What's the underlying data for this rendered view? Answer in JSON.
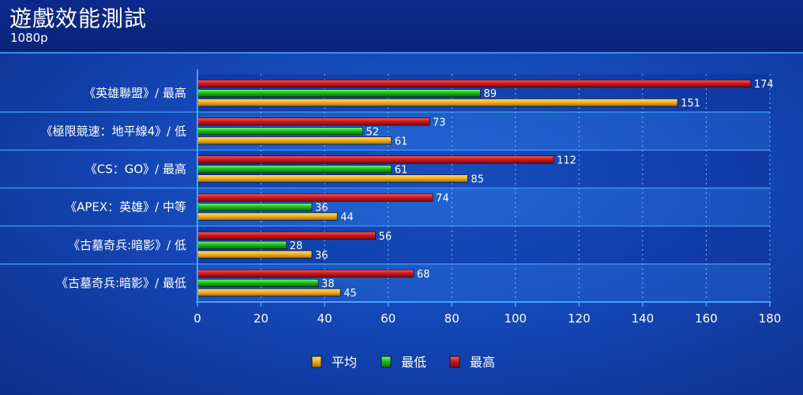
{
  "header": {
    "title": "遊戲效能測試",
    "subtitle": "1080p"
  },
  "colors": {
    "avg": "#f4b21f",
    "min": "#22c21c",
    "max": "#c4151a"
  },
  "chart_data": {
    "type": "bar",
    "orientation": "horizontal",
    "categories": [
      "《英雄聯盟》/ 最高",
      "《極限競速：地平線4》/ 低",
      "《CS：GO》/ 最高",
      "《APEX：英雄》/ 中等",
      "《古墓奇兵:暗影》/ 低",
      "《古墓奇兵:暗影》/ 最低"
    ],
    "series": [
      {
        "name": "最高",
        "key": "max",
        "values": [
          174,
          73,
          112,
          74,
          56,
          68
        ]
      },
      {
        "name": "最低",
        "key": "min",
        "values": [
          89,
          52,
          61,
          36,
          28,
          38
        ]
      },
      {
        "name": "平均",
        "key": "avg",
        "values": [
          151,
          61,
          85,
          44,
          36,
          45
        ]
      }
    ],
    "legend_order": [
      "avg",
      "min",
      "max"
    ],
    "xlim": [
      0,
      180
    ],
    "xticks": [
      0,
      20,
      40,
      60,
      80,
      100,
      120,
      140,
      160,
      180
    ],
    "grid": true,
    "legend_position": "bottom"
  }
}
